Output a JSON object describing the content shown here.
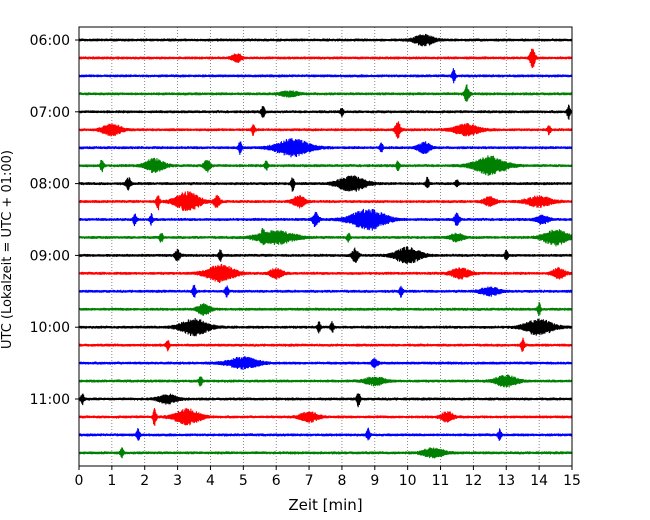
{
  "chart_data": {
    "type": "line",
    "subtype": "helicorder",
    "xlabel": "Zeit  [min]",
    "ylabel": "UTC (Lokalzeit = UTC + 01:00)",
    "xlim": [
      0,
      15
    ],
    "x_ticks": [
      0,
      1,
      2,
      3,
      4,
      5,
      6,
      7,
      8,
      9,
      10,
      11,
      12,
      13,
      14,
      15
    ],
    "y_ticks": [
      "06:00",
      "07:00",
      "08:00",
      "09:00",
      "10:00",
      "11:00"
    ],
    "grid": "vertical dotted at each minute",
    "trace_colors": [
      "#000000",
      "#ff0000",
      "#0000ff",
      "#008000"
    ],
    "trace_count": 24,
    "trace_interval_min": 15,
    "bursts": [
      [
        [
          10.5,
          0.3,
          1.3
        ]
      ],
      [
        [
          4.8,
          0.15,
          1.0
        ],
        [
          13.8,
          0.08,
          2.2
        ]
      ],
      [
        [
          11.4,
          0.05,
          1.6
        ]
      ],
      [
        [
          6.4,
          0.3,
          0.6
        ],
        [
          11.8,
          0.08,
          2.0
        ]
      ],
      [
        [
          5.6,
          0.05,
          1.6
        ],
        [
          8.0,
          0.05,
          1.0
        ],
        [
          14.9,
          0.05,
          1.8
        ]
      ],
      [
        [
          1.0,
          0.3,
          1.4
        ],
        [
          5.3,
          0.05,
          1.3
        ],
        [
          9.7,
          0.08,
          2.0
        ],
        [
          11.8,
          0.4,
          1.3
        ],
        [
          14.3,
          0.05,
          1.0
        ]
      ],
      [
        [
          4.9,
          0.05,
          1.6
        ],
        [
          6.5,
          0.55,
          2.0
        ],
        [
          9.2,
          0.05,
          1.0
        ],
        [
          10.5,
          0.2,
          1.3
        ]
      ],
      [
        [
          0.7,
          0.05,
          1.6
        ],
        [
          2.3,
          0.3,
          1.6
        ],
        [
          3.9,
          0.1,
          1.4
        ],
        [
          5.7,
          0.05,
          1.2
        ],
        [
          9.7,
          0.05,
          1.1
        ],
        [
          12.5,
          0.5,
          2.2
        ]
      ],
      [
        [
          1.5,
          0.08,
          1.3
        ],
        [
          6.5,
          0.05,
          1.8
        ],
        [
          8.3,
          0.45,
          1.8
        ],
        [
          10.6,
          0.05,
          1.4
        ],
        [
          11.5,
          0.05,
          1.0
        ]
      ],
      [
        [
          2.4,
          0.05,
          2.0
        ],
        [
          3.3,
          0.4,
          2.2
        ],
        [
          4.2,
          0.1,
          1.3
        ],
        [
          6.7,
          0.2,
          1.3
        ],
        [
          12.5,
          0.2,
          1.0
        ],
        [
          14.0,
          0.4,
          1.2
        ]
      ],
      [
        [
          1.7,
          0.05,
          1.6
        ],
        [
          2.2,
          0.05,
          1.2
        ],
        [
          7.2,
          0.1,
          1.7
        ],
        [
          8.8,
          0.55,
          2.4
        ],
        [
          11.5,
          0.08,
          1.4
        ],
        [
          14.1,
          0.2,
          1.0
        ]
      ],
      [
        [
          2.5,
          0.05,
          1.2
        ],
        [
          5.6,
          0.05,
          1.2
        ],
        [
          6.0,
          0.6,
          1.5
        ],
        [
          8.2,
          0.05,
          1.0
        ],
        [
          11.5,
          0.2,
          1.0
        ],
        [
          14.5,
          0.4,
          1.8
        ]
      ],
      [
        [
          3.0,
          0.08,
          1.3
        ],
        [
          4.3,
          0.05,
          1.3
        ],
        [
          8.4,
          0.1,
          1.6
        ],
        [
          10.0,
          0.4,
          1.9
        ],
        [
          13.0,
          0.05,
          1.2
        ]
      ],
      [
        [
          4.3,
          0.45,
          2.0
        ],
        [
          6.0,
          0.2,
          1.2
        ],
        [
          11.6,
          0.3,
          1.2
        ],
        [
          14.6,
          0.2,
          1.2
        ]
      ],
      [
        [
          3.5,
          0.05,
          1.6
        ],
        [
          4.5,
          0.05,
          1.3
        ],
        [
          9.8,
          0.05,
          1.4
        ],
        [
          12.5,
          0.3,
          1.0
        ]
      ],
      [
        [
          3.8,
          0.2,
          1.3
        ],
        [
          14.0,
          0.05,
          1.5
        ]
      ],
      [
        [
          3.5,
          0.45,
          1.9
        ],
        [
          7.3,
          0.05,
          1.2
        ],
        [
          7.7,
          0.05,
          1.2
        ],
        [
          14.0,
          0.45,
          1.8
        ]
      ],
      [
        [
          2.7,
          0.05,
          1.3
        ],
        [
          13.5,
          0.05,
          1.6
        ]
      ],
      [
        [
          5.0,
          0.5,
          1.3
        ],
        [
          9.0,
          0.1,
          1.0
        ]
      ],
      [
        [
          3.7,
          0.05,
          1.3
        ],
        [
          9.0,
          0.3,
          1.0
        ],
        [
          13.0,
          0.35,
          1.3
        ]
      ],
      [
        [
          0.1,
          0.05,
          1.3
        ],
        [
          2.7,
          0.3,
          1.0
        ],
        [
          8.5,
          0.05,
          1.8
        ]
      ],
      [
        [
          2.3,
          0.05,
          2.2
        ],
        [
          3.3,
          0.4,
          1.8
        ],
        [
          7.0,
          0.3,
          1.1
        ],
        [
          11.2,
          0.2,
          1.2
        ]
      ],
      [
        [
          1.8,
          0.05,
          1.4
        ],
        [
          8.8,
          0.05,
          1.6
        ],
        [
          12.8,
          0.05,
          1.2
        ]
      ],
      [
        [
          1.3,
          0.05,
          1.2
        ],
        [
          10.8,
          0.35,
          1.1
        ]
      ]
    ]
  }
}
